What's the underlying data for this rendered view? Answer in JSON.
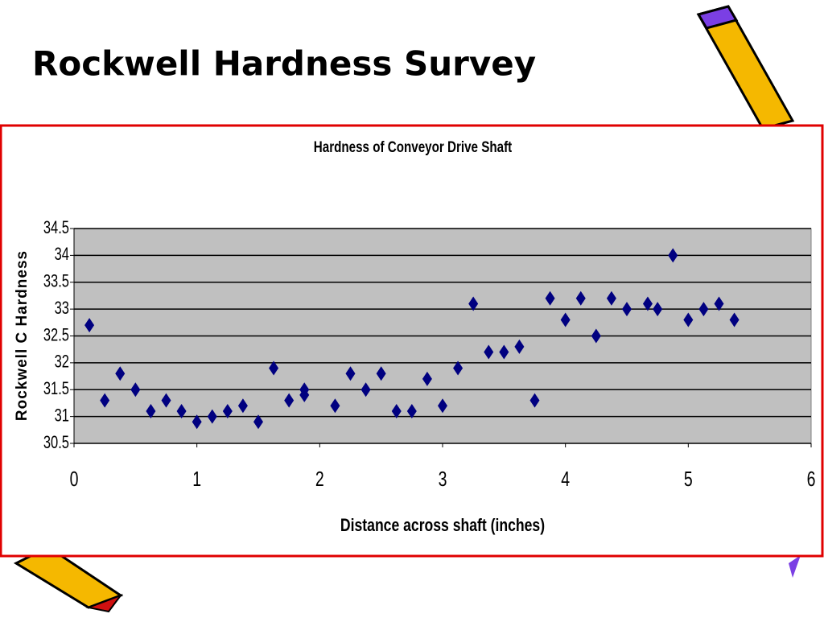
{
  "title": "Rockwell Hardness Survey",
  "chart_data": {
    "type": "scatter",
    "title": "Hardness of Conveyor Drive Shaft",
    "x_label": "Distance across shaft (inches)",
    "y_label": "Rockwell C Hardness",
    "x": [
      0.125,
      0.25,
      0.375,
      0.5,
      0.625,
      0.75,
      0.875,
      1.0,
      1.125,
      1.25,
      1.375,
      1.5,
      1.625,
      1.75,
      1.875,
      1.875,
      2.125,
      2.25,
      2.375,
      2.5,
      2.625,
      2.75,
      2.875,
      3.0,
      3.125,
      3.25,
      3.375,
      3.5,
      3.625,
      3.75,
      3.875,
      4.0,
      4.125,
      4.25,
      4.375,
      4.5,
      4.67,
      4.75,
      4.875,
      5.0,
      5.125,
      5.25,
      5.375
    ],
    "values": [
      32.7,
      31.3,
      31.8,
      31.5,
      31.1,
      31.3,
      31.1,
      30.9,
      31.0,
      31.1,
      31.2,
      30.9,
      31.9,
      31.3,
      31.5,
      31.4,
      31.2,
      31.8,
      31.5,
      31.8,
      31.1,
      31.1,
      31.7,
      31.2,
      31.9,
      33.1,
      32.2,
      32.2,
      32.3,
      31.3,
      33.2,
      32.8,
      33.2,
      32.5,
      33.2,
      33.0,
      33.1,
      33.0,
      34.0,
      32.8,
      33.0,
      33.1,
      32.8
    ],
    "color": "#000080",
    "xlim": [
      0,
      6
    ],
    "xticks": [
      0,
      1,
      2,
      3,
      4,
      5,
      6
    ],
    "ylim": [
      30.5,
      34.5
    ],
    "yticks": [
      30.5,
      31,
      31.5,
      32,
      32.5,
      33,
      33.5,
      34,
      34.5
    ],
    "grid": true,
    "plot_background": "#c0c0c0"
  }
}
